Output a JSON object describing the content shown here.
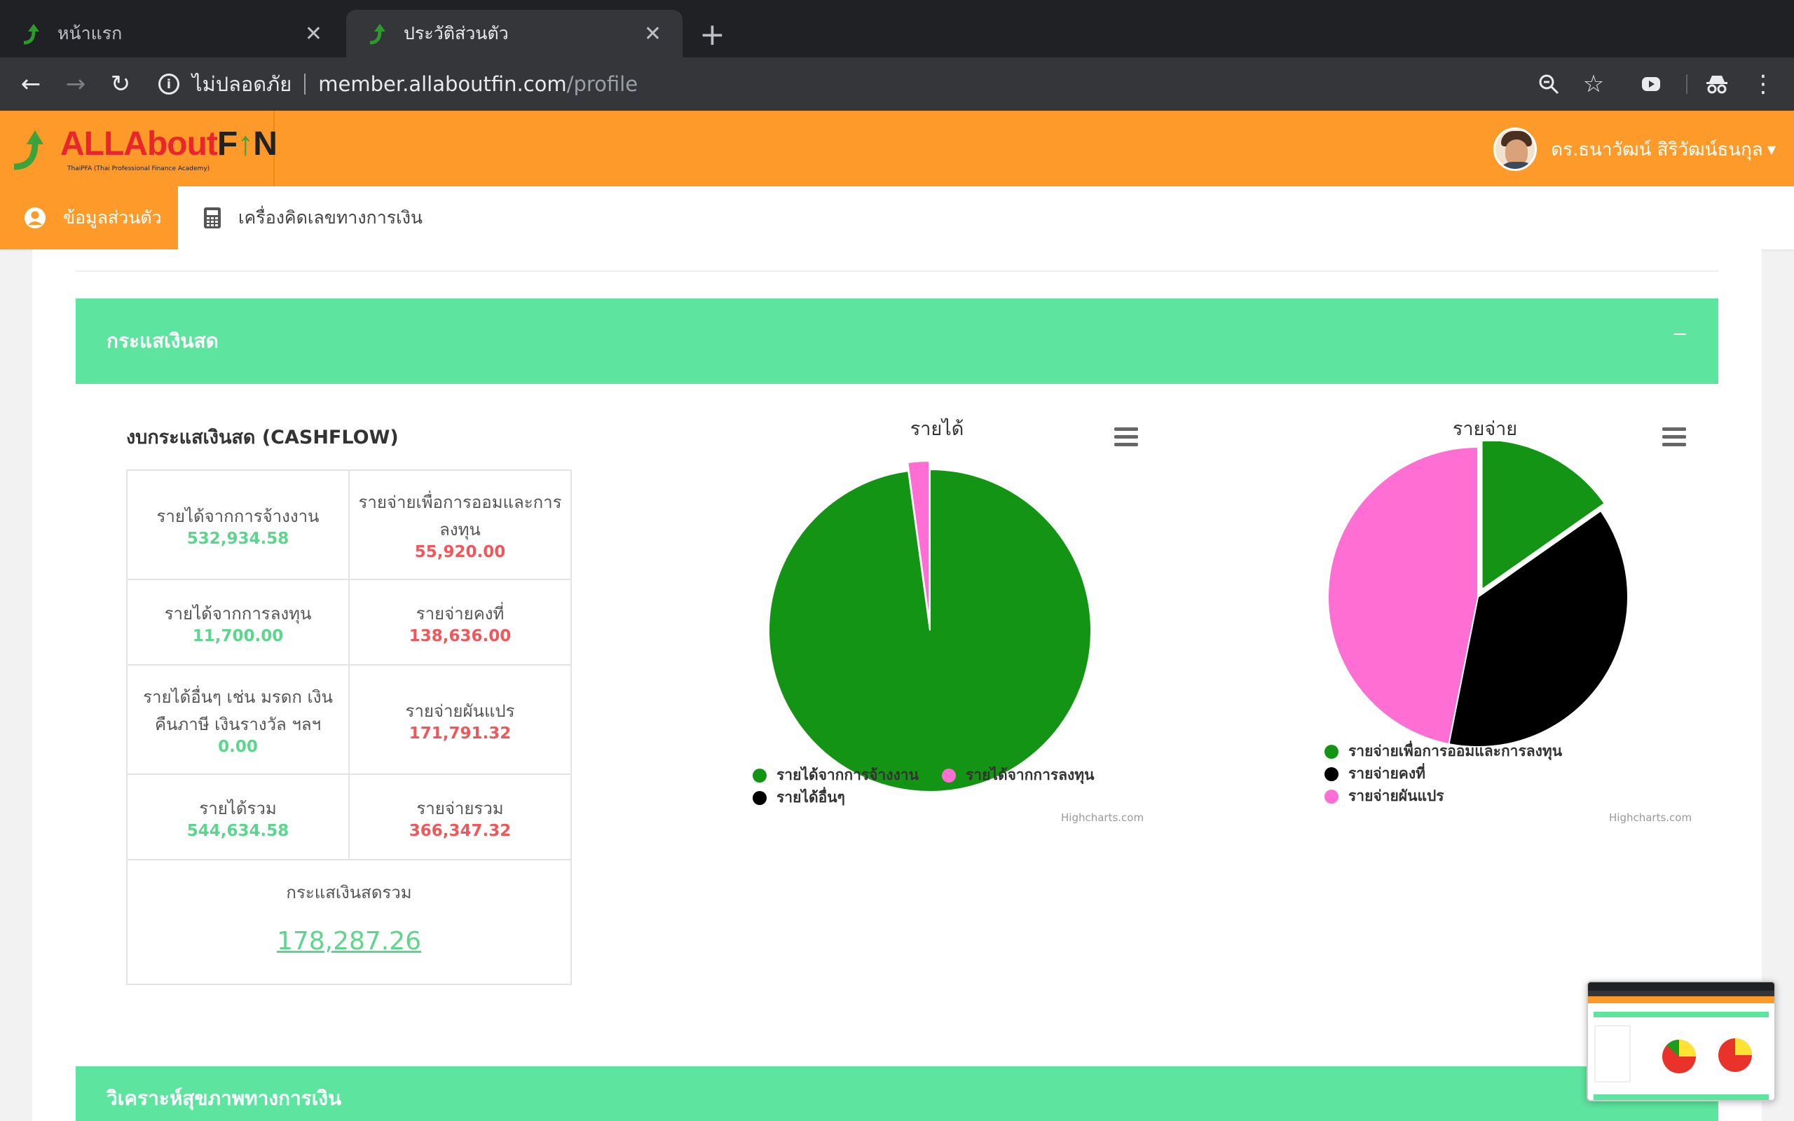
{
  "browser": {
    "tabs": [
      {
        "label": "หน้าแรก"
      },
      {
        "label": "ประวัติส่วนตัว"
      }
    ],
    "address": {
      "security": "ไม่ปลอดภัย",
      "host": "member.allaboutfin.com",
      "path": "/profile"
    }
  },
  "site": {
    "logo": {
      "part1": "ALLAbout",
      "part2": "F",
      "part3": "N",
      "sub": "ThaiPFA (Thai Professional Finance Academy)"
    },
    "user_name": "ดร.ธนาวัฒน์ สิริวัฒน์ธนกุล"
  },
  "subnav": {
    "items": [
      {
        "label": "ข้อมูลส่วนตัว"
      },
      {
        "label": "เครื่องคิดเลขทางการเงิน"
      }
    ]
  },
  "panels": {
    "cashflow_title": "กระแสเงินสด",
    "health_title": "วิเคราะห์สุขภาพทางการเงิน"
  },
  "cashflow": {
    "title": "งบกระแสเงินสด (CASHFLOW)",
    "rows": [
      {
        "left_label": "รายได้จากการจ้างงาน",
        "left_value": "532,934.58",
        "right_label": "รายจ่ายเพื่อการออมและการลงทุน",
        "right_value": "55,920.00"
      },
      {
        "left_label": "รายได้จากการลงทุน",
        "left_value": "11,700.00",
        "right_label": "รายจ่ายคงที่",
        "right_value": "138,636.00"
      },
      {
        "left_label": "รายได้อื่นๆ เช่น มรดก เงินคืนภาษี เงินรางวัล ฯลฯ",
        "left_value": "0.00",
        "right_label": "รายจ่ายผันแปร",
        "right_value": "171,791.32"
      },
      {
        "left_label": "รายได้รวม",
        "left_value": "544,634.58",
        "right_label": "รายจ่ายรวม",
        "right_value": "366,347.32"
      }
    ],
    "net_label": "กระแสเงินสดรวม",
    "net_value": "178,287.26"
  },
  "chart_data": [
    {
      "type": "pie",
      "title": "รายได้",
      "categories": [
        "รายได้จากการจ้างงาน",
        "รายได้จากการลงทุน",
        "รายได้อื่นๆ"
      ],
      "values": [
        532934.58,
        11700.0,
        0.0
      ],
      "colors": [
        "#149414",
        "#ff6fd3",
        "#000000"
      ],
      "legend": "bottom",
      "credits": "Highcharts.com"
    },
    {
      "type": "pie",
      "title": "รายจ่าย",
      "categories": [
        "รายจ่ายเพื่อการออมและการลงทุน",
        "รายจ่ายคงที่",
        "รายจ่ายผันแปร"
      ],
      "values": [
        55920.0,
        138636.0,
        171791.32
      ],
      "colors": [
        "#149414",
        "#000000",
        "#ff6fd3"
      ],
      "legend": "bottom",
      "credits": "Highcharts.com"
    }
  ],
  "colors": {
    "orange": "#fd9a29",
    "green_panel": "#5de49f",
    "value_green": "#5dd68d",
    "value_red": "#f0575a"
  }
}
